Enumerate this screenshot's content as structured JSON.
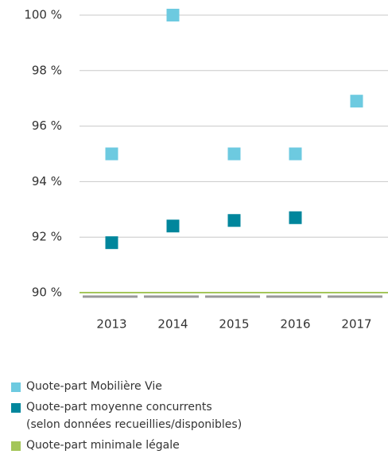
{
  "chart_data": {
    "type": "scatter",
    "categories": [
      "2013",
      "2014",
      "2015",
      "2016",
      "2017"
    ],
    "series": [
      {
        "name": "Quote-part Mobilière Vie",
        "color": "#6dcae0",
        "values": [
          95,
          100,
          95,
          95,
          96.9
        ]
      },
      {
        "name": "Quote-part moyenne concurrents\n(selon données recueillies/disponibles)",
        "color": "#00869c",
        "values": [
          91.8,
          92.4,
          92.6,
          92.7,
          null
        ]
      }
    ],
    "reference_lines": [
      {
        "name": "Quote-part minimale légale",
        "value": 90,
        "color": "#a4c65a"
      }
    ],
    "ylim": [
      90,
      100
    ],
    "yticks": [
      {
        "value": 90,
        "label": "90 %"
      },
      {
        "value": 92,
        "label": "92 %"
      },
      {
        "value": 94,
        "label": "94 %"
      },
      {
        "value": 96,
        "label": "96 %"
      },
      {
        "value": 98,
        "label": "98 %"
      },
      {
        "value": 100,
        "label": "100 %"
      }
    ],
    "grid": true
  }
}
